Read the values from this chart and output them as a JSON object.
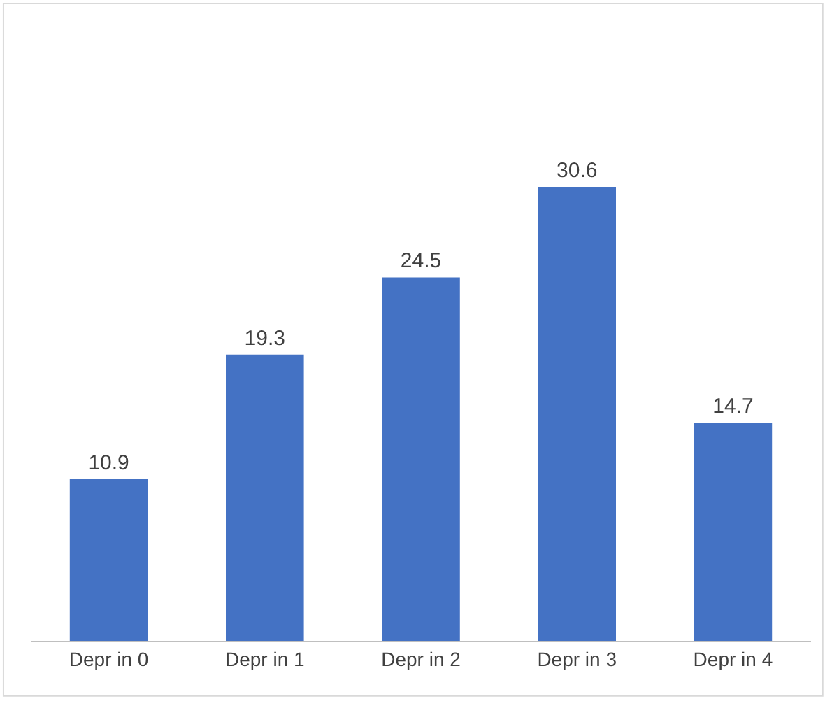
{
  "chart_data": {
    "type": "bar",
    "categories": [
      "Depr in 0",
      "Depr in 1",
      "Depr in 2",
      "Depr in 3",
      "Depr in 4"
    ],
    "values": [
      10.9,
      19.3,
      24.5,
      30.6,
      14.7
    ],
    "color": "#4472c4",
    "data_labels": true,
    "legend": false
  }
}
